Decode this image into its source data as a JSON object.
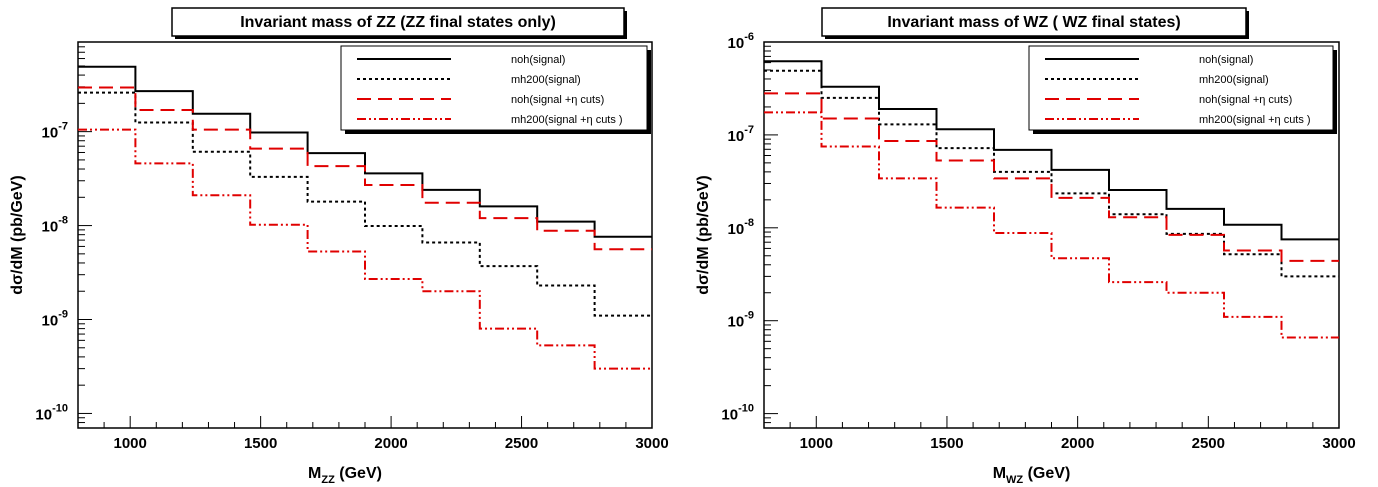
{
  "chart_data": [
    {
      "type": "line",
      "style": "step-histogram",
      "title": "Invariant mass of ZZ (ZZ final states only)",
      "ylabel": "dσ/dM  (pb/GeV)",
      "xlabel_main": "M",
      "xlabel_sub": "ZZ",
      "xlabel_unit": "(GeV)",
      "xlim": [
        800,
        3000
      ],
      "ylim": [
        7e-11,
        9e-07
      ],
      "yscale": "log",
      "x_ticks": [
        "1000",
        "1500",
        "2000",
        "2500",
        "3000"
      ],
      "y_ticks": [
        {
          "base": "10",
          "exp": "-7"
        },
        {
          "base": "10",
          "exp": "-8"
        },
        {
          "base": "10",
          "exp": "-9"
        },
        {
          "base": "10",
          "exp": "-10"
        }
      ],
      "bin_edges": [
        800,
        1020,
        1240,
        1460,
        1680,
        1900,
        2120,
        2340,
        2560,
        2780,
        3000
      ],
      "legend_position": "top-right",
      "series": [
        {
          "name": "noh(signal)",
          "color": "#000000",
          "dash": "solid",
          "values": [
            4.9e-07,
            2.7e-07,
            1.55e-07,
            9.8e-08,
            5.9e-08,
            3.6e-08,
            2.4e-08,
            1.6e-08,
            1.1e-08,
            7.6e-09
          ]
        },
        {
          "name": "mh200(signal)",
          "color": "#000000",
          "dash": "dotted",
          "values": [
            2.6e-07,
            1.25e-07,
            6.1e-08,
            3.3e-08,
            1.8e-08,
            9.9e-09,
            6.6e-09,
            3.7e-09,
            2.3e-09,
            1.1e-09
          ]
        },
        {
          "name": "noh(signal +η cuts)",
          "color": "#e00000",
          "dash": "dashed",
          "values": [
            2.95e-07,
            1.7e-07,
            1.05e-07,
            6.6e-08,
            4.3e-08,
            2.7e-08,
            1.75e-08,
            1.2e-08,
            8.8e-09,
            5.6e-09
          ]
        },
        {
          "name": "mh200(signal +η cuts )",
          "color": "#e00000",
          "dash": "dashdotdot",
          "values": [
            1.05e-07,
            4.6e-08,
            2.1e-08,
            1.02e-08,
            5.3e-09,
            2.7e-09,
            2e-09,
            8e-10,
            5.3e-10,
            3e-10
          ]
        }
      ]
    },
    {
      "type": "line",
      "style": "step-histogram",
      "title": "Invariant mass of WZ ( WZ final states)",
      "ylabel": "dσ/dM  (pb/GeV)",
      "xlabel_main": "M",
      "xlabel_sub": "WZ",
      "xlabel_unit": "(GeV)",
      "xlim": [
        800,
        3000
      ],
      "ylim": [
        7e-11,
        1e-06
      ],
      "yscale": "log",
      "x_ticks": [
        "1000",
        "1500",
        "2000",
        "2500",
        "3000"
      ],
      "y_ticks": [
        {
          "base": "10",
          "exp": "-6"
        },
        {
          "base": "10",
          "exp": "-7"
        },
        {
          "base": "10",
          "exp": "-8"
        },
        {
          "base": "10",
          "exp": "-9"
        },
        {
          "base": "10",
          "exp": "-10"
        }
      ],
      "bin_edges": [
        800,
        1020,
        1240,
        1460,
        1680,
        1900,
        2120,
        2340,
        2560,
        2780,
        3000
      ],
      "legend_position": "top-right",
      "series": [
        {
          "name": "noh(signal)",
          "color": "#000000",
          "dash": "solid",
          "values": [
            6.2e-07,
            3.3e-07,
            1.9e-07,
            1.15e-07,
            6.9e-08,
            4.2e-08,
            2.55e-08,
            1.6e-08,
            1.08e-08,
            7.5e-09
          ]
        },
        {
          "name": "mh200(signal)",
          "color": "#000000",
          "dash": "dotted",
          "values": [
            4.9e-07,
            2.5e-07,
            1.3e-07,
            7.2e-08,
            4e-08,
            2.35e-08,
            1.4e-08,
            8.6e-09,
            5.2e-09,
            3e-09
          ]
        },
        {
          "name": "noh(signal +η cuts)",
          "color": "#e00000",
          "dash": "dashed",
          "values": [
            2.8e-07,
            1.5e-07,
            8.6e-08,
            5.3e-08,
            3.4e-08,
            2.1e-08,
            1.3e-08,
            8.4e-09,
            5.7e-09,
            4.4e-09
          ]
        },
        {
          "name": "mh200(signal +η cuts )",
          "color": "#e00000",
          "dash": "dashdotdot",
          "values": [
            1.75e-07,
            7.5e-08,
            3.4e-08,
            1.65e-08,
            8.8e-09,
            4.7e-09,
            2.6e-09,
            2e-09,
            1.1e-09,
            6.6e-10
          ]
        }
      ]
    }
  ]
}
